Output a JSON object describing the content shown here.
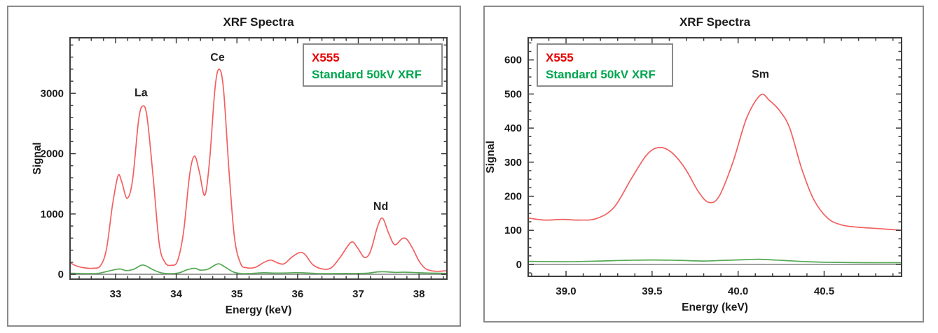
{
  "figure": {
    "background": "#ffffff",
    "panel_border_color": "#8a8a8a"
  },
  "chart_data": [
    {
      "type": "line",
      "title": "XRF Spectra",
      "xlabel": "Energy (keV)",
      "ylabel": "Signal",
      "xlim": [
        32.25,
        38.46
      ],
      "ylim": [
        -80,
        3920
      ],
      "xticks": [
        33,
        34,
        35,
        36,
        37,
        38
      ],
      "xtick_labels": [
        "33",
        "34",
        "35",
        "36",
        "37",
        "38"
      ],
      "yticks": [
        0,
        1000,
        2000,
        3000
      ],
      "ytick_labels": [
        "0",
        "1000",
        "2000",
        "3000"
      ],
      "minor_x_step": 0.2,
      "minor_y_step": 200,
      "grid": false,
      "frame_color": "#3d3d3d",
      "text_color": "#1a1a1a",
      "zero_line_color": "#8c8c8c",
      "legend": {
        "position": "top-right",
        "border_color": "#8a8a8a",
        "items": [
          {
            "label": "X555",
            "color": "#e60000"
          },
          {
            "label": "Standard 50kV XRF",
            "color": "#00a64f"
          }
        ]
      },
      "annotations": [
        {
          "text": "La",
          "x": 33.42,
          "y": 2950
        },
        {
          "text": "Ce",
          "x": 34.68,
          "y": 3540
        },
        {
          "text": "Nd",
          "x": 37.37,
          "y": 1070
        }
      ],
      "series": [
        {
          "name": "X555",
          "color": "#f26060",
          "points": [
            [
              32.25,
              195
            ],
            [
              32.35,
              140
            ],
            [
              32.5,
              105
            ],
            [
              32.62,
              100
            ],
            [
              32.75,
              140
            ],
            [
              32.85,
              420
            ],
            [
              32.95,
              1150
            ],
            [
              33.04,
              1630
            ],
            [
              33.1,
              1540
            ],
            [
              33.19,
              1260
            ],
            [
              33.28,
              1560
            ],
            [
              33.38,
              2560
            ],
            [
              33.45,
              2790
            ],
            [
              33.52,
              2600
            ],
            [
              33.62,
              1600
            ],
            [
              33.72,
              500
            ],
            [
              33.82,
              190
            ],
            [
              33.92,
              150
            ],
            [
              34.02,
              220
            ],
            [
              34.12,
              700
            ],
            [
              34.22,
              1650
            ],
            [
              34.3,
              1960
            ],
            [
              34.38,
              1700
            ],
            [
              34.47,
              1310
            ],
            [
              34.55,
              1900
            ],
            [
              34.64,
              3100
            ],
            [
              34.71,
              3400
            ],
            [
              34.78,
              3050
            ],
            [
              34.87,
              1700
            ],
            [
              34.96,
              600
            ],
            [
              35.06,
              180
            ],
            [
              35.15,
              110
            ],
            [
              35.3,
              115
            ],
            [
              35.45,
              200
            ],
            [
              35.56,
              235
            ],
            [
              35.68,
              185
            ],
            [
              35.78,
              175
            ],
            [
              35.9,
              280
            ],
            [
              36.03,
              360
            ],
            [
              36.12,
              330
            ],
            [
              36.25,
              160
            ],
            [
              36.4,
              90
            ],
            [
              36.55,
              105
            ],
            [
              36.7,
              280
            ],
            [
              36.88,
              530
            ],
            [
              36.98,
              450
            ],
            [
              37.1,
              280
            ],
            [
              37.2,
              380
            ],
            [
              37.32,
              800
            ],
            [
              37.4,
              930
            ],
            [
              37.5,
              680
            ],
            [
              37.6,
              490
            ],
            [
              37.72,
              590
            ],
            [
              37.8,
              580
            ],
            [
              37.9,
              420
            ],
            [
              38.0,
              220
            ],
            [
              38.1,
              100
            ],
            [
              38.2,
              60
            ],
            [
              38.32,
              50
            ],
            [
              38.46,
              60
            ]
          ]
        },
        {
          "name": "Standard 50kV XRF",
          "color": "#55a855",
          "points": [
            [
              32.25,
              18
            ],
            [
              32.5,
              12
            ],
            [
              32.7,
              15
            ],
            [
              32.85,
              45
            ],
            [
              33.0,
              80
            ],
            [
              33.08,
              88
            ],
            [
              33.18,
              62
            ],
            [
              33.3,
              85
            ],
            [
              33.42,
              150
            ],
            [
              33.5,
              140
            ],
            [
              33.62,
              75
            ],
            [
              33.75,
              25
            ],
            [
              33.9,
              12
            ],
            [
              34.05,
              25
            ],
            [
              34.18,
              75
            ],
            [
              34.3,
              100
            ],
            [
              34.4,
              70
            ],
            [
              34.52,
              85
            ],
            [
              34.65,
              160
            ],
            [
              34.72,
              170
            ],
            [
              34.82,
              110
            ],
            [
              34.95,
              35
            ],
            [
              35.08,
              12
            ],
            [
              35.25,
              15
            ],
            [
              35.45,
              25
            ],
            [
              35.6,
              20
            ],
            [
              35.8,
              22
            ],
            [
              36.0,
              28
            ],
            [
              36.15,
              22
            ],
            [
              36.35,
              12
            ],
            [
              36.55,
              12
            ],
            [
              36.75,
              15
            ],
            [
              36.95,
              15
            ],
            [
              37.15,
              18
            ],
            [
              37.32,
              40
            ],
            [
              37.45,
              42
            ],
            [
              37.6,
              32
            ],
            [
              37.78,
              35
            ],
            [
              37.95,
              28
            ],
            [
              38.15,
              20
            ],
            [
              38.3,
              18
            ],
            [
              38.46,
              15
            ]
          ]
        }
      ]
    },
    {
      "type": "line",
      "title": "XRF Spectra",
      "xlabel": "Energy (keV)",
      "ylabel": "Signal",
      "xlim": [
        38.78,
        40.95
      ],
      "ylim": [
        -35,
        665
      ],
      "xticks": [
        39.0,
        39.5,
        40.0,
        40.5
      ],
      "xtick_labels": [
        "39.0",
        "39.5",
        "40.0",
        "40.5"
      ],
      "yticks": [
        0,
        100,
        200,
        300,
        400,
        500,
        600
      ],
      "ytick_labels": [
        "0",
        "100",
        "200",
        "300",
        "400",
        "500",
        "600"
      ],
      "minor_x_step": 0.1,
      "minor_y_step": 25,
      "grid": false,
      "frame_color": "#3d3d3d",
      "text_color": "#1a1a1a",
      "zero_line_color": "#8c8c8c",
      "legend": {
        "position": "top-left",
        "border_color": "#8a8a8a",
        "items": [
          {
            "label": "X555",
            "color": "#e60000"
          },
          {
            "label": "Standard 50kV XRF",
            "color": "#00a64f"
          }
        ]
      },
      "annotations": [
        {
          "text": "Sm",
          "x": 40.13,
          "y": 548
        }
      ],
      "series": [
        {
          "name": "X555",
          "color": "#f26060",
          "points": [
            [
              38.78,
              136
            ],
            [
              38.88,
              130
            ],
            [
              38.98,
              132
            ],
            [
              39.08,
              130
            ],
            [
              39.18,
              135
            ],
            [
              39.28,
              168
            ],
            [
              39.38,
              252
            ],
            [
              39.47,
              322
            ],
            [
              39.54,
              343
            ],
            [
              39.61,
              330
            ],
            [
              39.69,
              283
            ],
            [
              39.77,
              213
            ],
            [
              39.83,
              182
            ],
            [
              39.89,
              200
            ],
            [
              39.97,
              300
            ],
            [
              40.05,
              430
            ],
            [
              40.13,
              497
            ],
            [
              40.18,
              482
            ],
            [
              40.24,
              452
            ],
            [
              40.3,
              400
            ],
            [
              40.37,
              280
            ],
            [
              40.44,
              190
            ],
            [
              40.52,
              136
            ],
            [
              40.6,
              116
            ],
            [
              40.7,
              109
            ],
            [
              40.82,
              105
            ],
            [
              40.95,
              100
            ]
          ]
        },
        {
          "name": "Standard 50kV XRF",
          "color": "#55a855",
          "points": [
            [
              38.78,
              9
            ],
            [
              39.0,
              8
            ],
            [
              39.2,
              10
            ],
            [
              39.35,
              12
            ],
            [
              39.5,
              13
            ],
            [
              39.65,
              12
            ],
            [
              39.8,
              10
            ],
            [
              39.92,
              12
            ],
            [
              40.05,
              14
            ],
            [
              40.12,
              15
            ],
            [
              40.25,
              12
            ],
            [
              40.4,
              8
            ],
            [
              40.55,
              6
            ],
            [
              40.75,
              5
            ],
            [
              40.95,
              5
            ]
          ]
        }
      ]
    }
  ]
}
